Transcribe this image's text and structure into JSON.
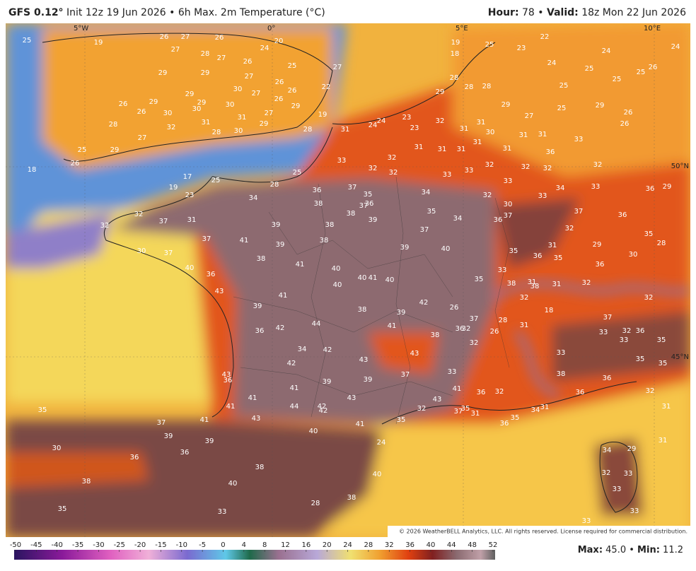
{
  "header": {
    "model": "GFS 0.12°",
    "description": "Init 12z 19 Jun 2026 • 6h Max. 2m Temperature (°C)",
    "hour_label": "Hour:",
    "hour_value": "78 •",
    "valid_label": "Valid:",
    "valid_value": "18z Mon 22 Jun 2026"
  },
  "coordinates": [
    "5°W",
    "0°",
    "5°E",
    "10°E",
    "50°N",
    "45°N"
  ],
  "temperature_labels": [
    25,
    19,
    26,
    27,
    26,
    24,
    20,
    27,
    28,
    27,
    26,
    25,
    27,
    29,
    29,
    27,
    26,
    26,
    22,
    29,
    30,
    27,
    26,
    26,
    29,
    29,
    30,
    30,
    30,
    27,
    29,
    19,
    26,
    28,
    31,
    31,
    32,
    29,
    30,
    28,
    28,
    27,
    25,
    29,
    26,
    18,
    17,
    19,
    25,
    23,
    25,
    28,
    34,
    19,
    18,
    25,
    23,
    22,
    24,
    25,
    24,
    25,
    26,
    24,
    25,
    25,
    28,
    28,
    28,
    29,
    29,
    25,
    29,
    26,
    26,
    27,
    32,
    31,
    31,
    30,
    31,
    31,
    33,
    31,
    24,
    24,
    23,
    23,
    31,
    31,
    31,
    31,
    31,
    36,
    32,
    32,
    32,
    33,
    33,
    33,
    32,
    32,
    32,
    32,
    34,
    32,
    33,
    33,
    34,
    33,
    36,
    29,
    30,
    35,
    34,
    36,
    37,
    37,
    36,
    32,
    35,
    28,
    29,
    30,
    31,
    36,
    35,
    35,
    36,
    33,
    35,
    38,
    31,
    38,
    31,
    32,
    32,
    32,
    18,
    28,
    31,
    26,
    37,
    36,
    32,
    26,
    32,
    33,
    37,
    32,
    33,
    36,
    33,
    35,
    35,
    35,
    38,
    36,
    32,
    31,
    36,
    32,
    36,
    35,
    36,
    34,
    31,
    31,
    35,
    37,
    36,
    37,
    35,
    36,
    37,
    38,
    38,
    39,
    38,
    39,
    37,
    37,
    41,
    39,
    38,
    39,
    40,
    38,
    41,
    40,
    40,
    41,
    40,
    40,
    41,
    42,
    38,
    39,
    39,
    44,
    41,
    38,
    36,
    42,
    43,
    34,
    42,
    42,
    43,
    37,
    33,
    39,
    39,
    41,
    41,
    41,
    43,
    43,
    41,
    44,
    42,
    42,
    43,
    41,
    40,
    39,
    39,
    37,
    41,
    32,
    37,
    31,
    32,
    30,
    37,
    40,
    36,
    43,
    43,
    36,
    35,
    24,
    35,
    32,
    30,
    36,
    36,
    38,
    38,
    40,
    40,
    38,
    28,
    33,
    35,
    33,
    34,
    29,
    32,
    33,
    31,
    33,
    33,
    31
  ],
  "copyright": "© 2026 WeatherBELL Analytics, LLC. All rights reserved. License required for commercial distribution.",
  "colorbar_ticks": [
    -50,
    -45,
    -40,
    -35,
    -30,
    -25,
    -20,
    -15,
    -10,
    -5,
    0,
    4,
    8,
    12,
    16,
    20,
    24,
    28,
    32,
    36,
    40,
    44,
    48,
    52
  ],
  "footer": {
    "max_label": "Max:",
    "max_value": "45.0 •",
    "min_label": "Min:",
    "min_value": "11.2"
  }
}
